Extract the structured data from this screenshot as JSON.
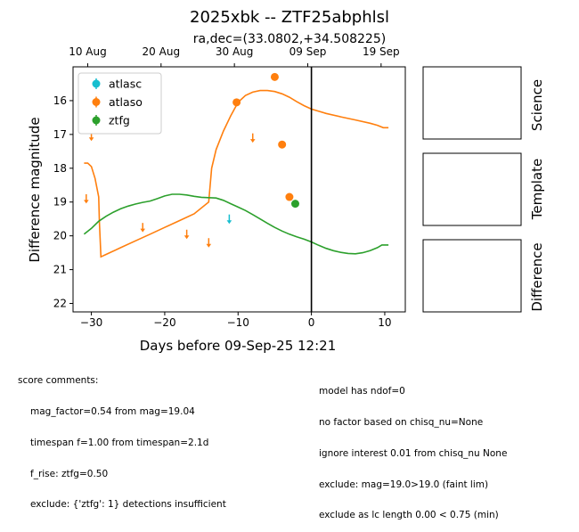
{
  "title": "2025xbk -- ZTF25abphlsl",
  "subtitle": "ra,dec=(33.0802,+34.508225)",
  "chart_data": {
    "type": "scatter",
    "xlabel": "Days before 09-Sep-25 12:21",
    "ylabel": "Difference magnitude",
    "xlim": [
      -32.5,
      12.8
    ],
    "ylim": [
      22.25,
      15.0
    ],
    "y_inverted": true,
    "x_ticks": [
      -30,
      -20,
      -10,
      0,
      10
    ],
    "y_ticks": [
      16,
      17,
      18,
      19,
      20,
      21,
      22
    ],
    "top_axis_ticks": [
      {
        "label": "10 Aug",
        "x": -30.5
      },
      {
        "label": "20 Aug",
        "x": -20.5
      },
      {
        "label": "30 Aug",
        "x": -10.5
      },
      {
        "label": "09 Sep",
        "x": -0.5
      },
      {
        "label": "19 Sep",
        "x": 9.5
      }
    ],
    "vline_x": 0,
    "legend": {
      "placement": "upper-left",
      "entries": [
        {
          "name": "atlasc",
          "color": "#17becf"
        },
        {
          "name": "atlaso",
          "color": "#ff7f0e"
        },
        {
          "name": "ztfg",
          "color": "#2ca02c"
        }
      ]
    },
    "detections": [
      {
        "series": "atlaso",
        "x": -10.2,
        "y": 16.05
      },
      {
        "series": "atlaso",
        "x": -5.0,
        "y": 15.3
      },
      {
        "series": "atlaso",
        "x": -4.0,
        "y": 17.3
      },
      {
        "series": "atlaso",
        "x": -3.0,
        "y": 18.85
      },
      {
        "series": "ztfg",
        "x": -2.2,
        "y": 19.05
      }
    ],
    "upper_limits": [
      {
        "series": "atlaso",
        "x": -30.7,
        "y": 18.9
      },
      {
        "series": "atlaso",
        "x": -30.0,
        "y": 17.05
      },
      {
        "series": "atlaso",
        "x": -23.0,
        "y": 19.75
      },
      {
        "series": "atlaso",
        "x": -17.0,
        "y": 19.95
      },
      {
        "series": "atlaso",
        "x": -14.0,
        "y": 20.2
      },
      {
        "series": "atlasc",
        "x": -11.2,
        "y": 19.5
      },
      {
        "series": "atlaso",
        "x": -8.0,
        "y": 17.1
      }
    ],
    "model_curves": [
      {
        "series": "atlaso",
        "color": "#ff7f0e",
        "points": [
          [
            -31,
            17.85
          ],
          [
            -30.5,
            17.85
          ],
          [
            -30,
            17.95
          ],
          [
            -29.5,
            18.3
          ],
          [
            -29,
            18.85
          ],
          [
            -28.9,
            19.6
          ],
          [
            -28.7,
            20.62
          ],
          [
            -28,
            20.55
          ],
          [
            -26,
            20.35
          ],
          [
            -24,
            20.15
          ],
          [
            -22,
            19.95
          ],
          [
            -20,
            19.75
          ],
          [
            -18,
            19.55
          ],
          [
            -16,
            19.35
          ],
          [
            -14,
            19.0
          ],
          [
            -13.6,
            18.0
          ],
          [
            -13,
            17.45
          ],
          [
            -12,
            16.9
          ],
          [
            -11,
            16.45
          ],
          [
            -10,
            16.05
          ],
          [
            -9,
            15.85
          ],
          [
            -8,
            15.75
          ],
          [
            -7,
            15.7
          ],
          [
            -6,
            15.7
          ],
          [
            -5,
            15.73
          ],
          [
            -4,
            15.8
          ],
          [
            -3,
            15.9
          ],
          [
            -2,
            16.03
          ],
          [
            -1,
            16.15
          ],
          [
            0,
            16.25
          ],
          [
            2,
            16.38
          ],
          [
            4,
            16.48
          ],
          [
            6,
            16.57
          ],
          [
            8,
            16.67
          ],
          [
            9,
            16.73
          ],
          [
            9.8,
            16.8
          ],
          [
            10.5,
            16.8
          ]
        ]
      },
      {
        "series": "ztfg",
        "color": "#2ca02c",
        "points": [
          [
            -31,
            19.95
          ],
          [
            -30,
            19.78
          ],
          [
            -29,
            19.57
          ],
          [
            -28,
            19.42
          ],
          [
            -27,
            19.3
          ],
          [
            -26,
            19.2
          ],
          [
            -25,
            19.12
          ],
          [
            -24,
            19.06
          ],
          [
            -23,
            19.01
          ],
          [
            -22,
            18.97
          ],
          [
            -21,
            18.9
          ],
          [
            -20,
            18.82
          ],
          [
            -19,
            18.77
          ],
          [
            -18,
            18.77
          ],
          [
            -17,
            18.79
          ],
          [
            -16,
            18.83
          ],
          [
            -15,
            18.86
          ],
          [
            -14,
            18.87
          ],
          [
            -13,
            18.88
          ],
          [
            -12,
            18.95
          ],
          [
            -11,
            19.05
          ],
          [
            -10,
            19.15
          ],
          [
            -9,
            19.25
          ],
          [
            -8,
            19.37
          ],
          [
            -7,
            19.5
          ],
          [
            -6,
            19.63
          ],
          [
            -5,
            19.75
          ],
          [
            -4,
            19.86
          ],
          [
            -3,
            19.95
          ],
          [
            -2,
            20.03
          ],
          [
            -1,
            20.1
          ],
          [
            0,
            20.18
          ],
          [
            1,
            20.28
          ],
          [
            2,
            20.37
          ],
          [
            3,
            20.44
          ],
          [
            4,
            20.49
          ],
          [
            5,
            20.52
          ],
          [
            6,
            20.53
          ],
          [
            7,
            20.5
          ],
          [
            8,
            20.44
          ],
          [
            9,
            20.35
          ],
          [
            9.6,
            20.27
          ],
          [
            10.5,
            20.27
          ]
        ]
      }
    ]
  },
  "side_panels": [
    {
      "label": "Science"
    },
    {
      "label": "Template"
    },
    {
      "label": "Difference"
    }
  ],
  "score_comments": {
    "heading": "score comments:",
    "lines": [
      "mag_factor=0.54 from mag=19.04",
      "timespan f=1.00 from timespan=2.1d",
      "f_rise: ztfg=0.50",
      "exclude: {'ztfg': 1} detections insufficient"
    ]
  },
  "model_comments": {
    "lines": [
      "model has ndof=0",
      "no factor based on chisq_nu=None",
      "ignore interest 0.01 from chisq_nu None",
      "exclude: mag=19.0>19.0 (faint lim)",
      "exclude as lc length 0.00 < 0.75 (min)"
    ]
  }
}
